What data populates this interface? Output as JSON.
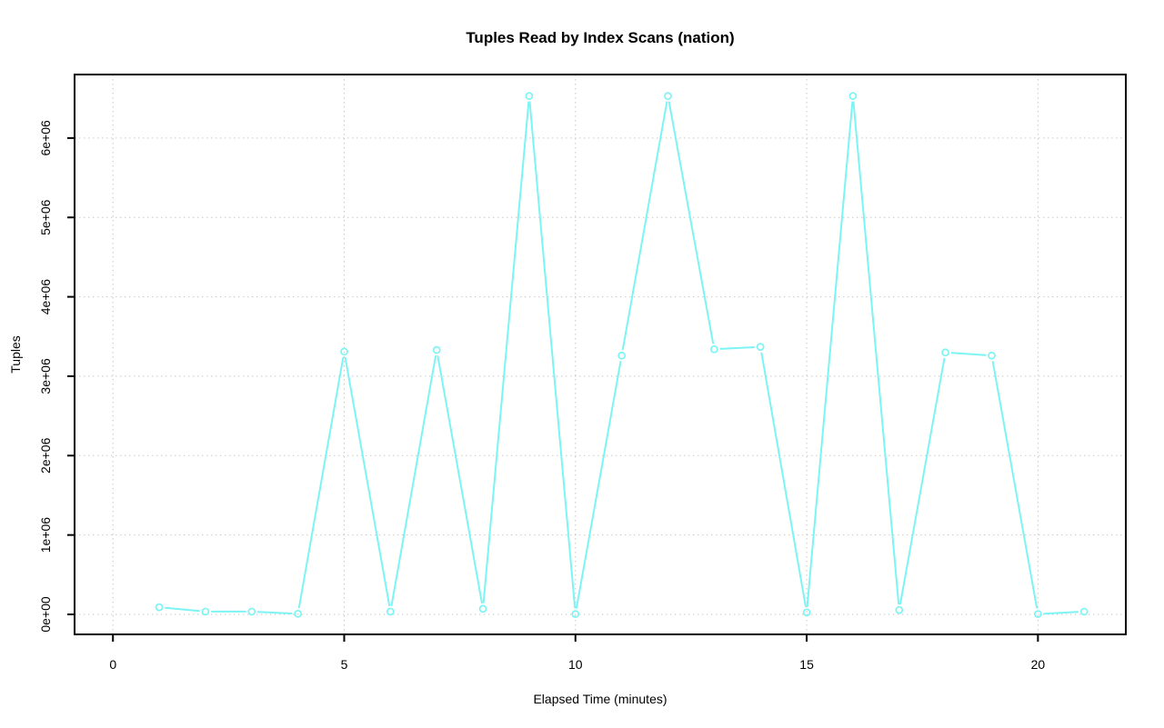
{
  "figure": {
    "background": "#FFFFFF"
  },
  "chart_data": {
    "type": "line",
    "title": "Tuples Read by Index Scans (nation)",
    "xlabel": "Elapsed Time (minutes)",
    "ylabel": "Tuples",
    "x": [
      1,
      2,
      3,
      4,
      5,
      6,
      7,
      8,
      9,
      10,
      11,
      12,
      13,
      14,
      15,
      16,
      17,
      18,
      19,
      20,
      21
    ],
    "y": [
      90000,
      35000,
      35000,
      8000,
      3310000,
      35000,
      3330000,
      70000,
      6530000,
      5000,
      3260000,
      6530000,
      3340000,
      3370000,
      25000,
      6530000,
      55000,
      3300000,
      3260000,
      5000,
      35000
    ],
    "xlim": [
      -0.83,
      21.9
    ],
    "ylim": [
      -252000,
      6800000
    ],
    "x_ticks": [
      0,
      5,
      10,
      15,
      20
    ],
    "x_tick_labels": [
      "0",
      "5",
      "10",
      "15",
      "20"
    ],
    "y_ticks": [
      0,
      1000000,
      2000000,
      3000000,
      4000000,
      5000000,
      6000000
    ],
    "y_tick_labels": [
      "0e+00",
      "1e+06",
      "2e+06",
      "3e+06",
      "4e+06",
      "5e+06",
      "6e+06"
    ],
    "grid": true,
    "grid_style": "dotted",
    "legend_position": "none",
    "marker": "open-circle",
    "line_type": "segments-with-gaps",
    "colors": {
      "series": "#7DF4F4",
      "grid": "#C9C9C9",
      "axis": "#000000",
      "text": "#000000",
      "background": "#FFFFFF"
    }
  }
}
